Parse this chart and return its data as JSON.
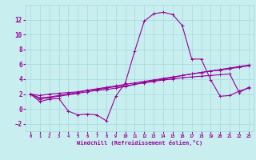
{
  "xlabel": "Windchill (Refroidissement éolien,°C)",
  "background_color": "#c8eef0",
  "grid_color": "#aadddd",
  "line_color": "#990099",
  "x_ticks": [
    0,
    1,
    2,
    3,
    4,
    5,
    6,
    7,
    8,
    9,
    10,
    11,
    12,
    13,
    14,
    15,
    16,
    17,
    18,
    19,
    20,
    21,
    22,
    23
  ],
  "ylim": [
    -3,
    14
  ],
  "xlim": [
    -0.5,
    23.5
  ],
  "y_ticks": [
    -2,
    0,
    2,
    4,
    6,
    8,
    10,
    12
  ],
  "series": [
    [
      2.0,
      1.0,
      1.3,
      1.4,
      -0.3,
      -0.8,
      -0.7,
      -0.8,
      -1.6,
      1.7,
      3.5,
      7.8,
      11.8,
      12.8,
      13.0,
      12.7,
      11.2,
      6.7,
      6.7,
      3.9,
      1.7,
      1.8,
      2.4,
      2.8
    ],
    [
      2.0,
      1.3,
      1.5,
      1.7,
      1.9,
      2.1,
      2.3,
      2.5,
      2.6,
      2.8,
      3.0,
      3.3,
      3.6,
      3.8,
      4.0,
      4.2,
      4.5,
      4.7,
      4.9,
      5.1,
      5.3,
      5.5,
      5.7,
      5.9
    ],
    [
      2.0,
      1.5,
      1.6,
      1.8,
      2.0,
      2.2,
      2.5,
      2.7,
      2.9,
      3.1,
      3.3,
      3.5,
      3.7,
      3.9,
      4.1,
      4.3,
      4.5,
      4.7,
      4.9,
      5.1,
      5.2,
      5.4,
      5.6,
      5.8
    ],
    [
      2.0,
      1.8,
      2.0,
      2.1,
      2.2,
      2.3,
      2.5,
      2.6,
      2.8,
      3.0,
      3.1,
      3.3,
      3.5,
      3.7,
      3.9,
      4.0,
      4.2,
      4.3,
      4.4,
      4.5,
      4.6,
      4.7,
      2.2,
      2.9
    ]
  ],
  "tick_fontsize": 5,
  "xlabel_fontsize": 5,
  "marker_size": 2.5,
  "line_width": 0.8
}
